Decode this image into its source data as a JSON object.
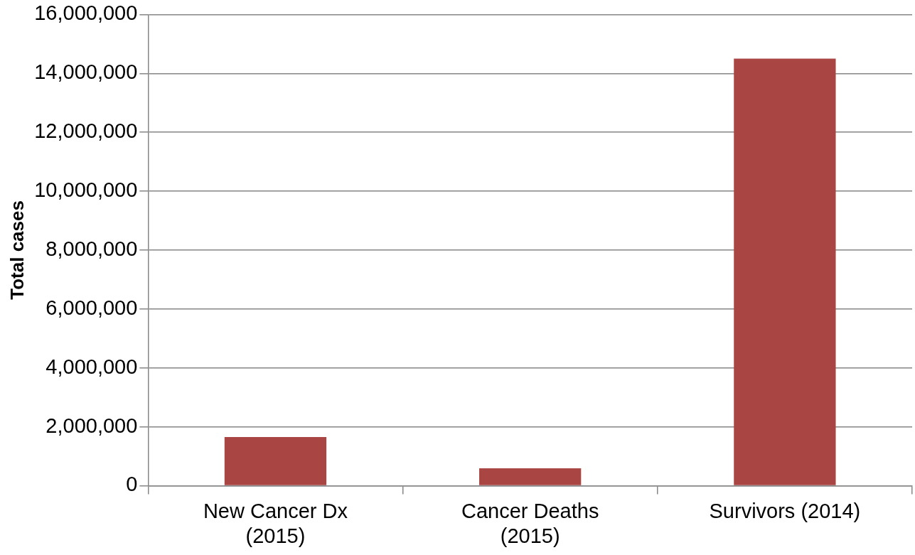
{
  "chart_data": {
    "type": "bar",
    "ylabel": "Total cases",
    "categories": [
      "New Cancer Dx (2015)",
      "Cancer Deaths (2015)",
      "Survivors (2014)"
    ],
    "values": [
      1650000,
      590000,
      14500000
    ],
    "color": "#a94643",
    "ylim": [
      0,
      16000000
    ],
    "yticks": [
      0,
      {
        "value": 2000000,
        "label": "2,000,000"
      },
      {
        "value": 4000000,
        "label": "4,000,000"
      },
      {
        "value": 6000000,
        "label": "6,000,000"
      },
      {
        "value": 8000000,
        "label": "8,000,000"
      },
      {
        "value": 10000000,
        "label": "10,000,000"
      },
      {
        "value": 12000000,
        "label": "12,000,000"
      },
      {
        "value": 14000000,
        "label": "14,000,000"
      },
      {
        "value": 16000000,
        "label": "16,000,000"
      }
    ],
    "grid": "y",
    "legend": false
  }
}
